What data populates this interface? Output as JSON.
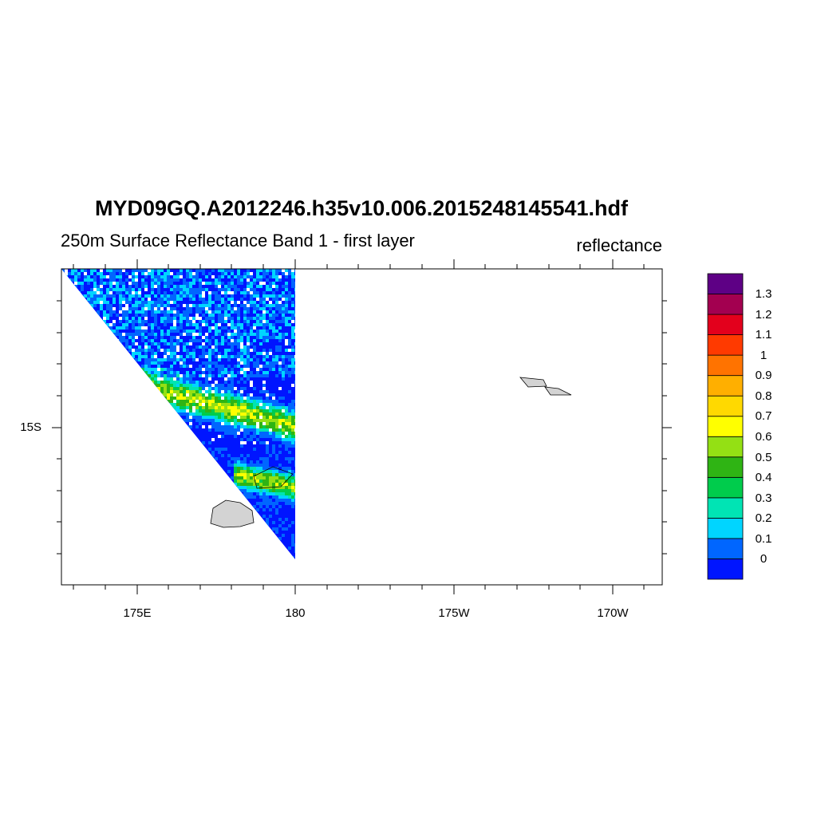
{
  "title": "MYD09GQ.A2012246.h35v10.006.2015248145541.hdf",
  "subtitle_left": "250m Surface Reflectance Band 1 - first layer",
  "subtitle_right": "reflectance",
  "map": {
    "x_axis_labels": [
      "175E",
      "180",
      "175W",
      "170W"
    ],
    "y_axis_labels": [
      "15S"
    ],
    "longitude_range": [
      172.6,
      191.6
    ],
    "latitude_range": [
      -20.0,
      -10.0
    ],
    "land_fill": "#d3d3d3",
    "data_swath": "left portion of map (approx. 172.6E to 180), clipped by diagonal scan edge; remainder of map has no data"
  },
  "colorbar": {
    "labels": [
      "1.3",
      "1.2",
      "1.1",
      "1",
      "0.9",
      "0.8",
      "0.7",
      "0.6",
      "0.5",
      "0.4",
      "0.3",
      "0.2",
      "0.1",
      "0"
    ],
    "colors_bottom_to_top": [
      "#0015ff",
      "#0066ff",
      "#00d5ff",
      "#00e4b4",
      "#00cc4c",
      "#2fb414",
      "#94e014",
      "#ffff00",
      "#ffd900",
      "#ffaf00",
      "#ff7300",
      "#ff3a00",
      "#e3001c",
      "#a30050",
      "#5e0085"
    ]
  }
}
